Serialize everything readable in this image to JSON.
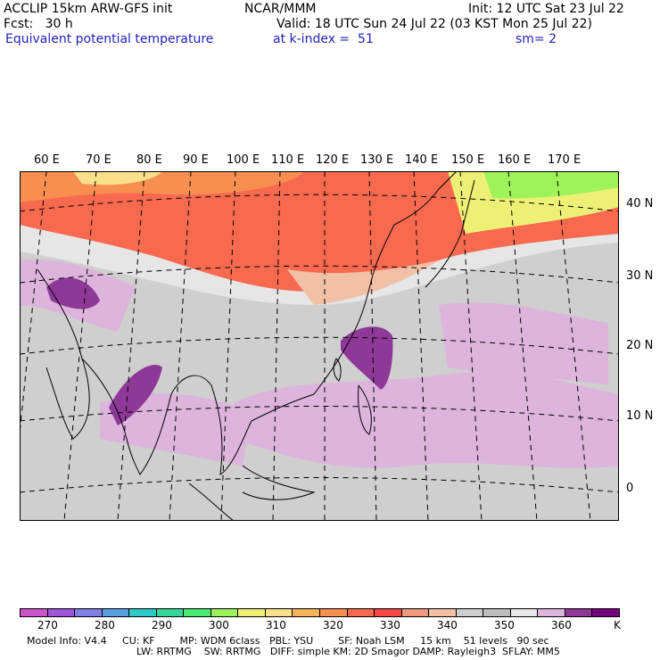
{
  "header": {
    "model": "ACCLIP 15km ARW-GFS init",
    "center": "NCAR/MMM",
    "init": "Init: 12 UTC Sat 23 Jul 22",
    "fcst": "Fcst:   30 h",
    "valid": "Valid: 18 UTC Sun 24 Jul 22 (03 KST Mon 25 Jul 22)",
    "field": "Equivalent potential temperature",
    "level": "at k-index =  51",
    "smoothing": "sm= 2"
  },
  "map": {
    "lon_labels": [
      "60 E",
      "70 E",
      "80 E",
      "90 E",
      "100 E",
      "110 E",
      "120 E",
      "130 E",
      "140 E",
      "150 E",
      "160 E",
      "170 E"
    ],
    "lat_labels": [
      "40 N",
      "30 N",
      "20 N",
      "10 N",
      "0"
    ]
  },
  "colorbar": {
    "colors": [
      "#cc55cc",
      "#9e55d8",
      "#7f7fe8",
      "#5a9ee0",
      "#2ec8c8",
      "#35d89a",
      "#4ce874",
      "#9ef25a",
      "#eef075",
      "#fbe08c",
      "#f8b45a",
      "#f88e50",
      "#f86a50",
      "#f84848",
      "#f09a80",
      "#f2c0a6",
      "#cfcfcf",
      "#bdbdbd",
      "#e8e8e8",
      "#dcb4dc",
      "#8e3898",
      "#72007a"
    ],
    "labels": [
      "270",
      "280",
      "290",
      "300",
      "310",
      "320",
      "330",
      "340",
      "350",
      "360"
    ],
    "unit": "K"
  },
  "footer": {
    "line1": "Model Info: V4.4     CU: KF        MP: WDM 6class   PBL: YSU        SF: Noah LSM     15 km    51 levels   90 sec",
    "line2": "LW: RRTMG    SW: RRTMG   DIFF: simple KM: 2D Smagor DAMP: Rayleigh3  SFLAY: MM5"
  }
}
